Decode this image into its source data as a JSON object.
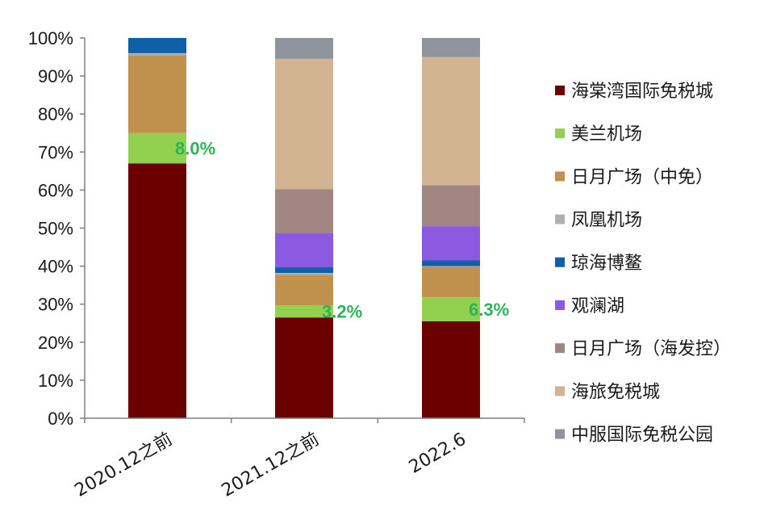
{
  "chart_data": {
    "type": "bar",
    "stacked": true,
    "percent": true,
    "categories": [
      "2020.12之前",
      "2021.12之前",
      "2022.6"
    ],
    "y_ticks": [
      "0%",
      "10%",
      "20%",
      "30%",
      "40%",
      "50%",
      "60%",
      "70%",
      "80%",
      "90%",
      "100%"
    ],
    "ylim": [
      0,
      100
    ],
    "legend_position": "right",
    "series": [
      {
        "name": "海棠湾国际免税城",
        "color": "#6b0000",
        "values": [
          67.0,
          26.5,
          25.5
        ]
      },
      {
        "name": "美兰机场",
        "color": "#92d050",
        "values": [
          8.0,
          3.2,
          6.3
        ]
      },
      {
        "name": "日月广场（中免）",
        "color": "#c0904d",
        "values": [
          20.5,
          8.0,
          8.0
        ]
      },
      {
        "name": "凤凰机场",
        "color": "#b0b0b0",
        "values": [
          0.5,
          0.5,
          0.2
        ]
      },
      {
        "name": "琼海博鳌",
        "color": "#1060a8",
        "values": [
          4.0,
          1.5,
          1.5
        ]
      },
      {
        "name": "观澜湖",
        "color": "#8c5ae0",
        "values": [
          0.0,
          9.0,
          9.0
        ]
      },
      {
        "name": "日月广场（海发控）",
        "color": "#a08580",
        "values": [
          0.0,
          11.5,
          10.8
        ]
      },
      {
        "name": "海旅免税城",
        "color": "#d2b492",
        "values": [
          0.0,
          34.3,
          33.7
        ]
      },
      {
        "name": "中服国际免税公园",
        "color": "#8e939c",
        "values": [
          0.0,
          5.5,
          5.0
        ]
      }
    ],
    "annotations": [
      {
        "category": "2020.12之前",
        "text": "8.0%"
      },
      {
        "category": "2021.12之前",
        "text": "3.2%"
      },
      {
        "category": "2022.6",
        "text": "6.3%"
      }
    ]
  }
}
